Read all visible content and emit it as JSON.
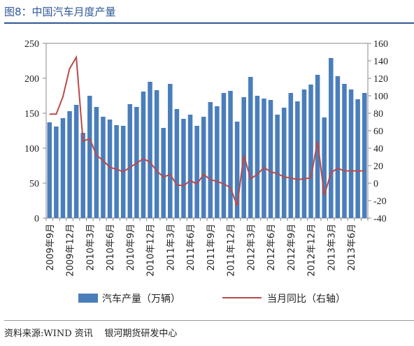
{
  "header": {
    "title": "图8：中国汽车月度产量"
  },
  "footer": {
    "source": "资料来源:WIND 资讯    银河期货研发中心"
  },
  "colors": {
    "bar": "#4a7ebb",
    "line": "#b94a48",
    "title": "#2d5796"
  },
  "chart_data": {
    "type": "bar+line",
    "categories": [
      "2009年9月",
      "2009年10月",
      "2009年11月",
      "2009年12月",
      "2010年1月",
      "2010年2月",
      "2010年3月",
      "2010年4月",
      "2010年5月",
      "2010年6月",
      "2010年7月",
      "2010年8月",
      "2010年9月",
      "2010年10月",
      "2010年11月",
      "2010年12月",
      "2011年1月",
      "2011年2月",
      "2011年3月",
      "2011年4月",
      "2011年5月",
      "2011年6月",
      "2011年7月",
      "2011年8月",
      "2011年9月",
      "2011年10月",
      "2011年11月",
      "2011年12月",
      "2012年1月",
      "2012年2月",
      "2012年3月",
      "2012年4月",
      "2012年5月",
      "2012年6月",
      "2012年7月",
      "2012年8月",
      "2012年9月",
      "2012年10月",
      "2012年11月",
      "2012年12月",
      "2013年1月",
      "2013年2月",
      "2013年3月",
      "2013年4月",
      "2013年5月",
      "2013年6月",
      "2013年7月",
      "2013年8月"
    ],
    "tick_labels": [
      {
        "index": 0,
        "label": "2009年9月"
      },
      {
        "index": 3,
        "label": "2009年12月"
      },
      {
        "index": 6,
        "label": "2010年3月"
      },
      {
        "index": 9,
        "label": "2010年6月"
      },
      {
        "index": 12,
        "label": "2010年9月"
      },
      {
        "index": 15,
        "label": "2010年12月"
      },
      {
        "index": 18,
        "label": "2011年3月"
      },
      {
        "index": 21,
        "label": "2011年6月"
      },
      {
        "index": 24,
        "label": "2011年9月"
      },
      {
        "index": 27,
        "label": "2011年12月"
      },
      {
        "index": 30,
        "label": "2012年3月"
      },
      {
        "index": 33,
        "label": "2012年6月"
      },
      {
        "index": 36,
        "label": "2012年9月"
      },
      {
        "index": 39,
        "label": "2012年12月"
      },
      {
        "index": 42,
        "label": "2013年3月"
      },
      {
        "index": 45,
        "label": "2013年6月"
      }
    ],
    "series": [
      {
        "name": "汽车产量（万辆）",
        "type": "bar",
        "axis": "left",
        "values": [
          137,
          131,
          143,
          153,
          162,
          122,
          175,
          159,
          145,
          141,
          133,
          132,
          163,
          159,
          181,
          195,
          183,
          129,
          192,
          156,
          142,
          148,
          132,
          145,
          166,
          160,
          179,
          182,
          138,
          173,
          202,
          175,
          171,
          169,
          148,
          158,
          179,
          167,
          184,
          191,
          205,
          144,
          229,
          203,
          192,
          184,
          170,
          179
        ]
      },
      {
        "name": "当月同比（右轴）",
        "type": "line",
        "axis": "right",
        "values": [
          79,
          79,
          99,
          131,
          144,
          48,
          51,
          32,
          26,
          18,
          16,
          13,
          18,
          23,
          28,
          24,
          14,
          7,
          10,
          -2,
          -3,
          3,
          -1,
          10,
          4,
          2,
          -1,
          -5,
          -26,
          32,
          5,
          10,
          18,
          13,
          11,
          7,
          6,
          4,
          5,
          6,
          48,
          -14,
          12,
          17,
          14,
          14,
          14,
          14
        ]
      }
    ],
    "y_left": {
      "min": 0,
      "max": 250,
      "ticks": [
        0,
        50,
        100,
        150,
        200,
        250
      ]
    },
    "y_right": {
      "min": -40,
      "max": 160,
      "ticks": [
        -40,
        -20,
        0,
        20,
        40,
        60,
        80,
        100,
        120,
        140,
        160
      ]
    },
    "legend": {
      "position": "bottom"
    }
  }
}
